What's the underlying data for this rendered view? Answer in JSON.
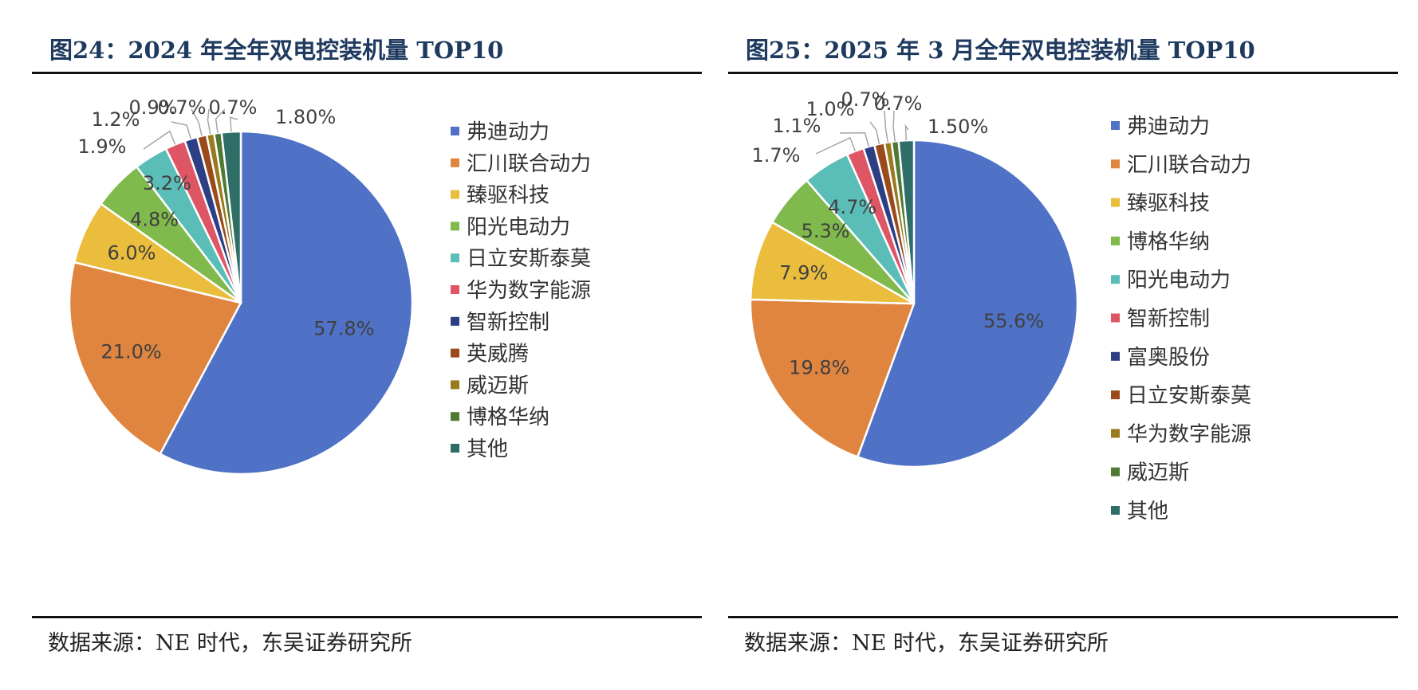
{
  "chart_data": [
    {
      "type": "pie",
      "title": "图24：2024 年全年双电控装机量 TOP10",
      "source": "数据来源：NE 时代，东吴证券研究所",
      "legend_position": "right",
      "categories": [
        "弗迪动力",
        "汇川联合动力",
        "臻驱科技",
        "阳光电动力",
        "日立安斯泰莫",
        "华为数字能源",
        "智新控制",
        "英威腾",
        "威迈斯",
        "博格华纳",
        "其他"
      ],
      "values": [
        57.8,
        21.0,
        6.0,
        4.8,
        3.2,
        1.9,
        1.2,
        0.9,
        0.7,
        0.7,
        1.8
      ],
      "labels": [
        "57.8%",
        "21.0%",
        "6.0%",
        "4.8%",
        "3.2%",
        "1.9%",
        "1.2%",
        "0.9%",
        "0.7%",
        "0.7%",
        "1.80%"
      ],
      "colors": [
        "#4F72C6",
        "#E0853F",
        "#EBBD3C",
        "#80B94C",
        "#5BBDB7",
        "#DE5666",
        "#2D3F84",
        "#9B4A1C",
        "#9A7A1E",
        "#4F7A33",
        "#2F6E66"
      ]
    },
    {
      "type": "pie",
      "title": "图25：2025 年 3 月全年双电控装机量 TOP10",
      "source": "数据来源：NE 时代，东吴证券研究所",
      "legend_position": "right",
      "categories": [
        "弗迪动力",
        "汇川联合动力",
        "臻驱科技",
        "博格华纳",
        "阳光电动力",
        "智新控制",
        "富奥股份",
        "日立安斯泰莫",
        "华为数字能源",
        "威迈斯",
        "其他"
      ],
      "values": [
        55.6,
        19.8,
        7.9,
        5.3,
        4.7,
        1.7,
        1.1,
        1.0,
        0.7,
        0.7,
        1.5
      ],
      "labels": [
        "55.6%",
        "19.8%",
        "7.9%",
        "5.3%",
        "4.7%",
        "1.7%",
        "1.1%",
        "1.0%",
        "0.7%",
        "0.7%",
        "1.50%"
      ],
      "colors": [
        "#4F72C6",
        "#E0853F",
        "#EBBD3C",
        "#80B94C",
        "#5BBDB7",
        "#DE5666",
        "#2D3F84",
        "#9B4A1C",
        "#9A7A1E",
        "#4F7A33",
        "#2F6E66"
      ]
    }
  ]
}
